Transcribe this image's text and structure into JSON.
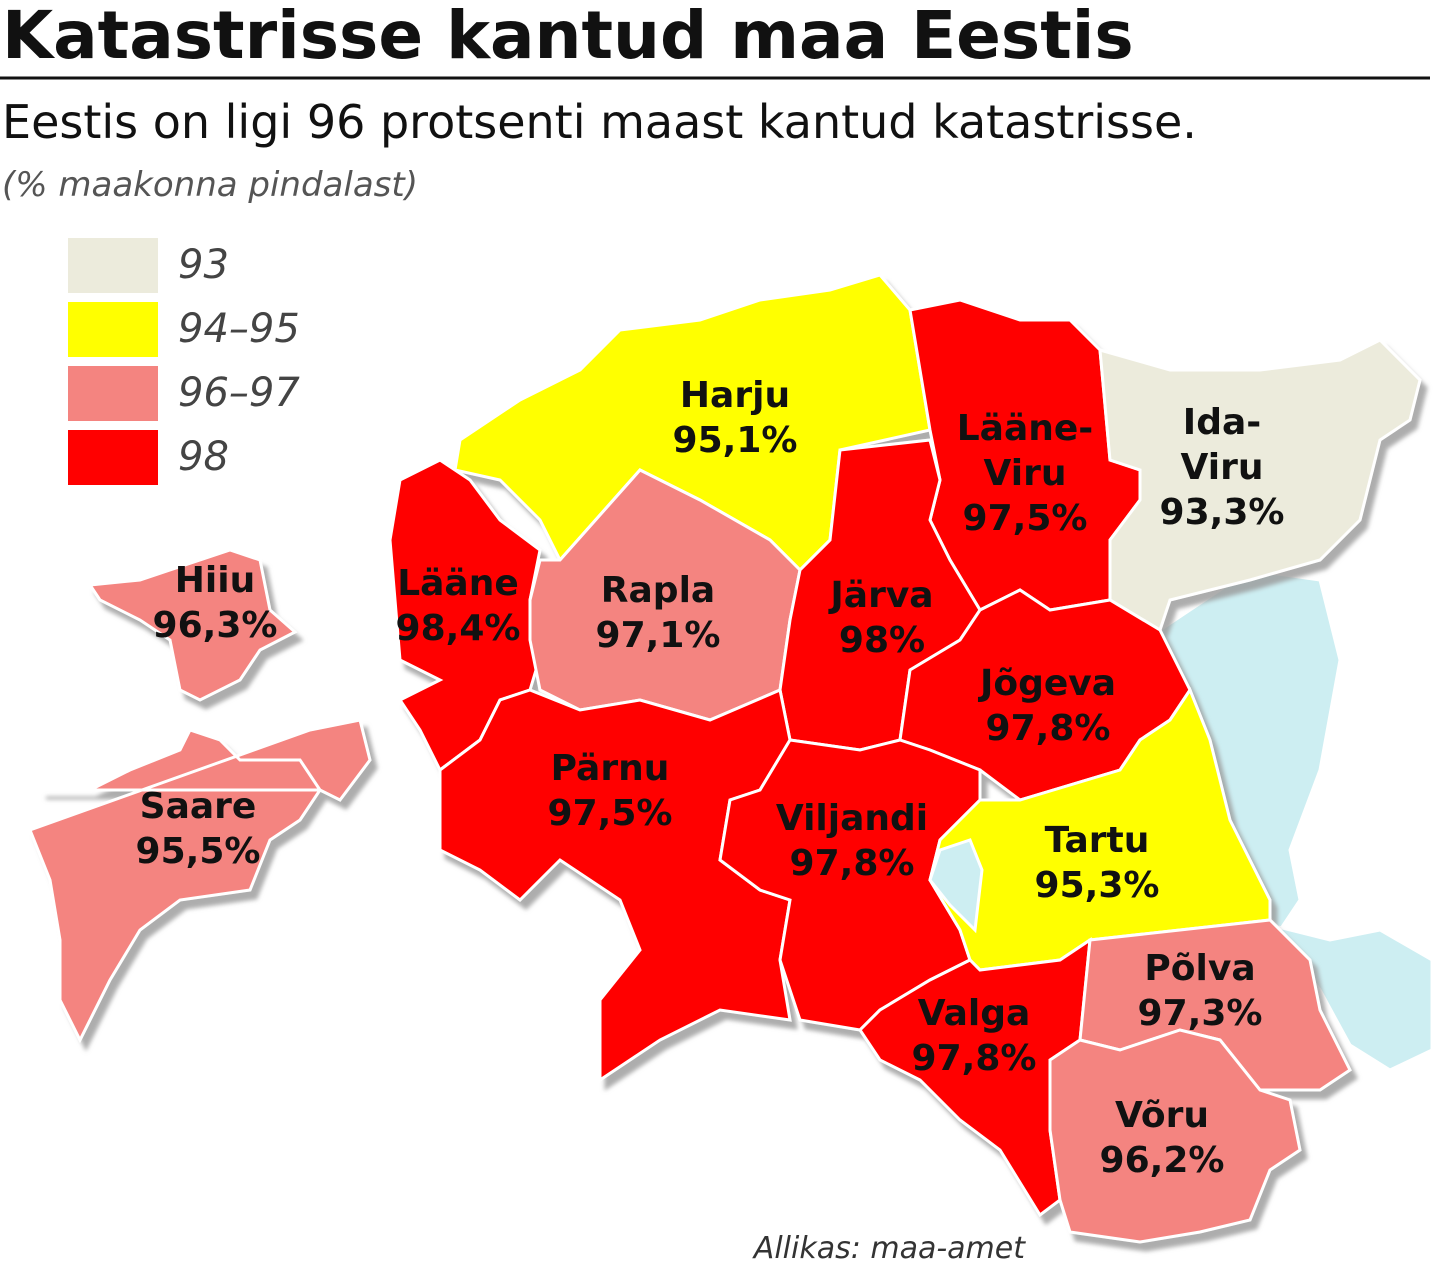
{
  "header": {
    "title": "Katastrisse kantud maa Eestis",
    "subtitle": "Eestis on ligi 96 protsenti maast kantud katastrisse.",
    "note": "(% maakonna pindalast)"
  },
  "legend": [
    {
      "label": "93",
      "color": "#ecebdc"
    },
    {
      "label": "94–95",
      "color": "#ffff00"
    },
    {
      "label": "96–97",
      "color": "#f48480"
    },
    {
      "label": "98",
      "color": "#ff0000"
    }
  ],
  "regions": [
    {
      "name": [
        "Harju"
      ],
      "label": "95,1%",
      "color": "#ffff00"
    },
    {
      "name": [
        "Lääne-",
        "Viru"
      ],
      "label": "97,5%",
      "color": "#ff0000"
    },
    {
      "name": [
        "Ida-",
        "Viru"
      ],
      "label": "93,3%",
      "color": "#ecebdc"
    },
    {
      "name": [
        "Lääne"
      ],
      "label": "98,4%",
      "color": "#ff0000"
    },
    {
      "name": [
        "Rapla"
      ],
      "label": "97,1%",
      "color": "#f48480"
    },
    {
      "name": [
        "Järva"
      ],
      "label": "98%",
      "color": "#ff0000"
    },
    {
      "name": [
        "Jõgeva"
      ],
      "label": "97,8%",
      "color": "#ff0000"
    },
    {
      "name": [
        "Pärnu"
      ],
      "label": "97,5%",
      "color": "#ff0000"
    },
    {
      "name": [
        "Viljandi"
      ],
      "label": "97,8%",
      "color": "#ff0000"
    },
    {
      "name": [
        "Tartu"
      ],
      "label": "95,3%",
      "color": "#ffff00"
    },
    {
      "name": [
        "Valga"
      ],
      "label": "97,8%",
      "color": "#ff0000"
    },
    {
      "name": [
        "Põlva"
      ],
      "label": "97,3%",
      "color": "#f48480"
    },
    {
      "name": [
        "Võru"
      ],
      "label": "96,2%",
      "color": "#f48480"
    },
    {
      "name": [
        "Hiiu"
      ],
      "label": "96,3%",
      "color": "#f48480"
    },
    {
      "name": [
        "Saare"
      ],
      "label": "95,5%",
      "color": "#f48480"
    }
  ],
  "source": "Allikas: maa-amet"
}
